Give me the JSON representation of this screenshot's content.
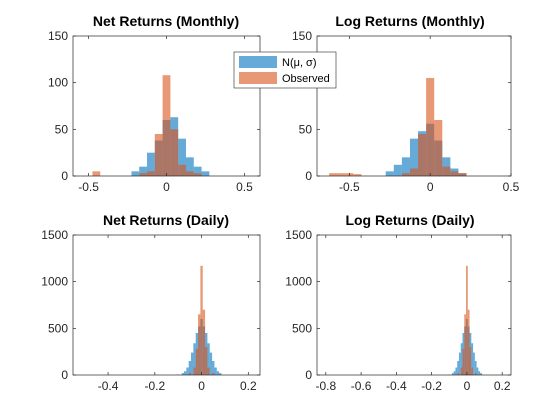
{
  "colors": {
    "normal": "#0072BD",
    "observed": "#D95319",
    "axis": "#262626",
    "background": "#ffffff"
  },
  "legend": {
    "placement": "between top panels",
    "entries": [
      "N(μ, σ)",
      "Observed"
    ]
  },
  "chart_data": [
    {
      "type": "histogram",
      "title": "Net Returns (Monthly)",
      "xlim": [
        -0.6,
        0.6
      ],
      "ylim": [
        0,
        150
      ],
      "xticks": [
        -0.5,
        0,
        0.5
      ],
      "yticks": [
        0,
        50,
        100,
        150
      ],
      "bin_width": 0.05,
      "series": [
        {
          "name": "N(μ, σ)",
          "color": "normal",
          "bins": [
            {
              "x": -0.2,
              "y": 5
            },
            {
              "x": -0.15,
              "y": 10
            },
            {
              "x": -0.1,
              "y": 25
            },
            {
              "x": -0.05,
              "y": 38
            },
            {
              "x": 0.0,
              "y": 60
            },
            {
              "x": 0.05,
              "y": 63
            },
            {
              "x": 0.1,
              "y": 40
            },
            {
              "x": 0.15,
              "y": 20
            },
            {
              "x": 0.2,
              "y": 10
            },
            {
              "x": 0.25,
              "y": 5
            }
          ]
        },
        {
          "name": "Observed",
          "color": "observed",
          "bins": [
            {
              "x": -0.45,
              "y": 5
            },
            {
              "x": -0.15,
              "y": 3
            },
            {
              "x": -0.1,
              "y": 5
            },
            {
              "x": -0.05,
              "y": 45
            },
            {
              "x": 0.0,
              "y": 108
            },
            {
              "x": 0.05,
              "y": 50
            },
            {
              "x": 0.1,
              "y": 12
            },
            {
              "x": 0.15,
              "y": 5
            },
            {
              "x": 0.2,
              "y": 3
            }
          ]
        }
      ]
    },
    {
      "type": "histogram",
      "title": "Log Returns (Monthly)",
      "xlim": [
        -0.7,
        0.5
      ],
      "ylim": [
        0,
        150
      ],
      "xticks": [
        -0.5,
        0,
        0.5
      ],
      "yticks": [
        0,
        50,
        100,
        150
      ],
      "bin_width": 0.05,
      "series": [
        {
          "name": "N(μ, σ)",
          "color": "normal",
          "bins": [
            {
              "x": -0.25,
              "y": 5
            },
            {
              "x": -0.2,
              "y": 12
            },
            {
              "x": -0.15,
              "y": 20
            },
            {
              "x": -0.1,
              "y": 40
            },
            {
              "x": -0.05,
              "y": 48
            },
            {
              "x": 0.0,
              "y": 56
            },
            {
              "x": 0.05,
              "y": 38
            },
            {
              "x": 0.1,
              "y": 20
            },
            {
              "x": 0.15,
              "y": 8
            },
            {
              "x": 0.2,
              "y": 3
            }
          ]
        },
        {
          "name": "Observed",
          "color": "observed",
          "bins": [
            {
              "x": -0.6,
              "y": 3
            },
            {
              "x": -0.55,
              "y": 3
            },
            {
              "x": -0.5,
              "y": 3
            },
            {
              "x": -0.45,
              "y": 2
            },
            {
              "x": -0.15,
              "y": 3
            },
            {
              "x": -0.1,
              "y": 8
            },
            {
              "x": -0.05,
              "y": 45
            },
            {
              "x": 0.0,
              "y": 105
            },
            {
              "x": 0.05,
              "y": 60
            },
            {
              "x": 0.1,
              "y": 10
            },
            {
              "x": 0.15,
              "y": 5
            },
            {
              "x": 0.2,
              "y": 3
            }
          ]
        }
      ]
    },
    {
      "type": "histogram",
      "title": "Net Returns (Daily)",
      "xlim": [
        -0.55,
        0.25
      ],
      "ylim": [
        0,
        1500
      ],
      "xticks": [
        -0.4,
        -0.2,
        0,
        0.2
      ],
      "yticks": [
        0,
        500,
        1000,
        1500
      ],
      "bin_width": 0.01,
      "series": [
        {
          "name": "N(μ, σ)",
          "color": "normal",
          "bins": [
            {
              "x": -0.08,
              "y": 20
            },
            {
              "x": -0.07,
              "y": 40
            },
            {
              "x": -0.06,
              "y": 80
            },
            {
              "x": -0.05,
              "y": 150
            },
            {
              "x": -0.04,
              "y": 240
            },
            {
              "x": -0.03,
              "y": 340
            },
            {
              "x": -0.02,
              "y": 450
            },
            {
              "x": -0.01,
              "y": 520
            },
            {
              "x": 0.0,
              "y": 600
            },
            {
              "x": 0.01,
              "y": 520
            },
            {
              "x": 0.02,
              "y": 450
            },
            {
              "x": 0.03,
              "y": 340
            },
            {
              "x": 0.04,
              "y": 240
            },
            {
              "x": 0.05,
              "y": 150
            },
            {
              "x": 0.06,
              "y": 80
            },
            {
              "x": 0.07,
              "y": 40
            },
            {
              "x": 0.08,
              "y": 20
            }
          ]
        },
        {
          "name": "Observed",
          "color": "observed",
          "bins": [
            {
              "x": -0.1,
              "y": 5
            },
            {
              "x": -0.05,
              "y": 20
            },
            {
              "x": -0.03,
              "y": 80
            },
            {
              "x": -0.02,
              "y": 280
            },
            {
              "x": -0.01,
              "y": 650
            },
            {
              "x": 0.0,
              "y": 1170
            },
            {
              "x": 0.01,
              "y": 700
            },
            {
              "x": 0.02,
              "y": 300
            },
            {
              "x": 0.03,
              "y": 80
            },
            {
              "x": 0.05,
              "y": 20
            },
            {
              "x": 0.08,
              "y": 5
            }
          ]
        }
      ]
    },
    {
      "type": "histogram",
      "title": "Log Returns (Daily)",
      "xlim": [
        -0.85,
        0.25
      ],
      "ylim": [
        0,
        1500
      ],
      "xticks": [
        -0.8,
        -0.6,
        -0.4,
        -0.2,
        0,
        0.2
      ],
      "yticks": [
        0,
        500,
        1000,
        1500
      ],
      "bin_width": 0.01,
      "series": [
        {
          "name": "N(μ, σ)",
          "color": "normal",
          "bins": [
            {
              "x": -0.08,
              "y": 20
            },
            {
              "x": -0.07,
              "y": 40
            },
            {
              "x": -0.06,
              "y": 80
            },
            {
              "x": -0.05,
              "y": 150
            },
            {
              "x": -0.04,
              "y": 240
            },
            {
              "x": -0.03,
              "y": 340
            },
            {
              "x": -0.02,
              "y": 450
            },
            {
              "x": -0.01,
              "y": 520
            },
            {
              "x": 0.0,
              "y": 600
            },
            {
              "x": 0.01,
              "y": 520
            },
            {
              "x": 0.02,
              "y": 450
            },
            {
              "x": 0.03,
              "y": 340
            },
            {
              "x": 0.04,
              "y": 240
            },
            {
              "x": 0.05,
              "y": 150
            },
            {
              "x": 0.06,
              "y": 80
            },
            {
              "x": 0.07,
              "y": 40
            },
            {
              "x": 0.08,
              "y": 20
            }
          ]
        },
        {
          "name": "Observed",
          "color": "observed",
          "bins": [
            {
              "x": -0.1,
              "y": 5
            },
            {
              "x": -0.05,
              "y": 20
            },
            {
              "x": -0.03,
              "y": 80
            },
            {
              "x": -0.02,
              "y": 280
            },
            {
              "x": -0.01,
              "y": 650
            },
            {
              "x": 0.0,
              "y": 1170
            },
            {
              "x": 0.01,
              "y": 700
            },
            {
              "x": 0.02,
              "y": 300
            },
            {
              "x": 0.03,
              "y": 80
            },
            {
              "x": 0.05,
              "y": 20
            },
            {
              "x": 0.08,
              "y": 5
            }
          ]
        }
      ]
    }
  ]
}
